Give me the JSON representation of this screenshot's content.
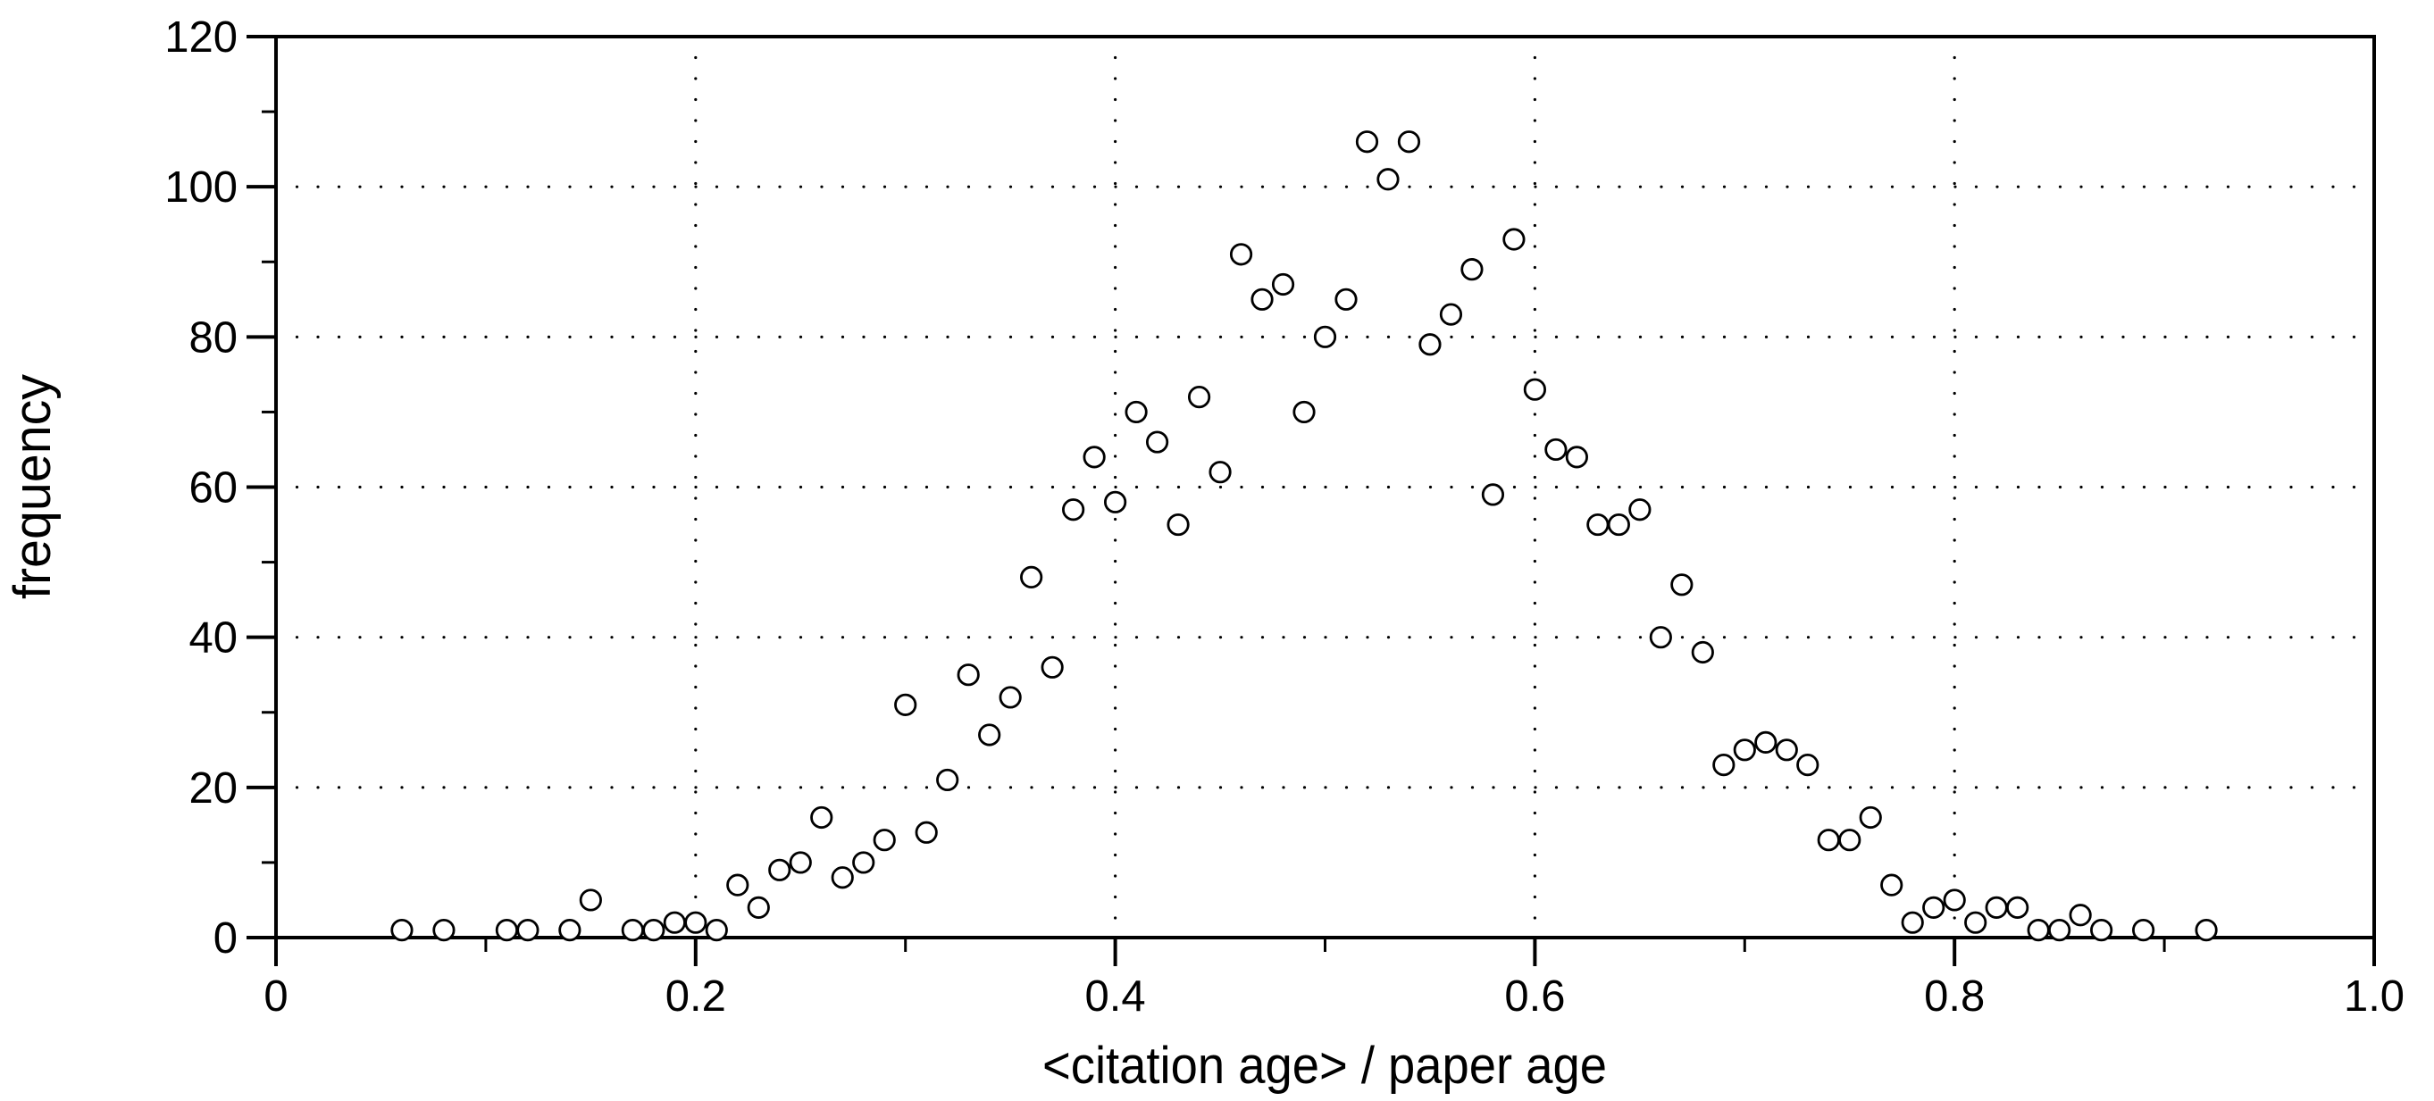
{
  "chart_data": {
    "type": "scatter",
    "title": "",
    "xlabel": "<citation age> / paper age",
    "ylabel": "frequency",
    "xlim": [
      0,
      1.0
    ],
    "ylim": [
      0,
      120
    ],
    "x_major_ticks": [
      0,
      0.2,
      0.4,
      0.6,
      0.8,
      1.0
    ],
    "x_tick_labels": [
      "0",
      "0.2",
      "0.4",
      "0.6",
      "0.8",
      "1.0"
    ],
    "x_minor_ticks": [
      0.1,
      0.3,
      0.5,
      0.7,
      0.9
    ],
    "y_major_ticks": [
      0,
      20,
      40,
      60,
      80,
      100,
      120
    ],
    "y_tick_labels": [
      "0",
      "20",
      "40",
      "60",
      "80",
      "100",
      "120"
    ],
    "y_minor_ticks": [
      10,
      30,
      50,
      70,
      90,
      110
    ],
    "grid": {
      "style": "dotted",
      "x_lines": [
        0.2,
        0.4,
        0.6,
        0.8
      ],
      "y_lines": [
        20,
        40,
        60,
        80,
        100
      ]
    },
    "legend": "none",
    "marker": {
      "shape": "open-circle",
      "radius_px": 11.2,
      "stroke_width_px": 2.8,
      "stroke": "#000000",
      "fill": "#ffffff"
    },
    "colors": {
      "foreground": "#000000",
      "background": "#ffffff"
    },
    "points": [
      [
        0.06,
        1
      ],
      [
        0.08,
        1
      ],
      [
        0.11,
        1
      ],
      [
        0.12,
        1
      ],
      [
        0.14,
        1
      ],
      [
        0.15,
        5
      ],
      [
        0.17,
        1
      ],
      [
        0.18,
        1
      ],
      [
        0.19,
        2
      ],
      [
        0.2,
        2
      ],
      [
        0.21,
        1
      ],
      [
        0.22,
        7
      ],
      [
        0.23,
        4
      ],
      [
        0.24,
        9
      ],
      [
        0.25,
        10
      ],
      [
        0.26,
        16
      ],
      [
        0.27,
        8
      ],
      [
        0.28,
        10
      ],
      [
        0.29,
        13
      ],
      [
        0.3,
        31
      ],
      [
        0.31,
        14
      ],
      [
        0.32,
        21
      ],
      [
        0.33,
        35
      ],
      [
        0.34,
        27
      ],
      [
        0.35,
        32
      ],
      [
        0.36,
        48
      ],
      [
        0.37,
        36
      ],
      [
        0.38,
        57
      ],
      [
        0.39,
        64
      ],
      [
        0.4,
        58
      ],
      [
        0.41,
        70
      ],
      [
        0.42,
        66
      ],
      [
        0.43,
        55
      ],
      [
        0.44,
        72
      ],
      [
        0.45,
        62
      ],
      [
        0.46,
        91
      ],
      [
        0.47,
        85
      ],
      [
        0.48,
        87
      ],
      [
        0.49,
        70
      ],
      [
        0.5,
        80
      ],
      [
        0.51,
        85
      ],
      [
        0.52,
        106
      ],
      [
        0.53,
        101
      ],
      [
        0.54,
        106
      ],
      [
        0.55,
        79
      ],
      [
        0.56,
        83
      ],
      [
        0.57,
        89
      ],
      [
        0.58,
        59
      ],
      [
        0.59,
        93
      ],
      [
        0.6,
        73
      ],
      [
        0.61,
        65
      ],
      [
        0.62,
        64
      ],
      [
        0.63,
        55
      ],
      [
        0.64,
        55
      ],
      [
        0.65,
        57
      ],
      [
        0.66,
        40
      ],
      [
        0.67,
        47
      ],
      [
        0.68,
        38
      ],
      [
        0.69,
        23
      ],
      [
        0.7,
        25
      ],
      [
        0.71,
        26
      ],
      [
        0.72,
        25
      ],
      [
        0.73,
        23
      ],
      [
        0.74,
        13
      ],
      [
        0.75,
        13
      ],
      [
        0.76,
        16
      ],
      [
        0.77,
        7
      ],
      [
        0.78,
        2
      ],
      [
        0.79,
        4
      ],
      [
        0.8,
        5
      ],
      [
        0.81,
        2
      ],
      [
        0.82,
        4
      ],
      [
        0.83,
        4
      ],
      [
        0.84,
        1
      ],
      [
        0.85,
        1
      ],
      [
        0.86,
        3
      ],
      [
        0.87,
        1
      ],
      [
        0.89,
        1
      ],
      [
        0.92,
        1
      ]
    ]
  }
}
